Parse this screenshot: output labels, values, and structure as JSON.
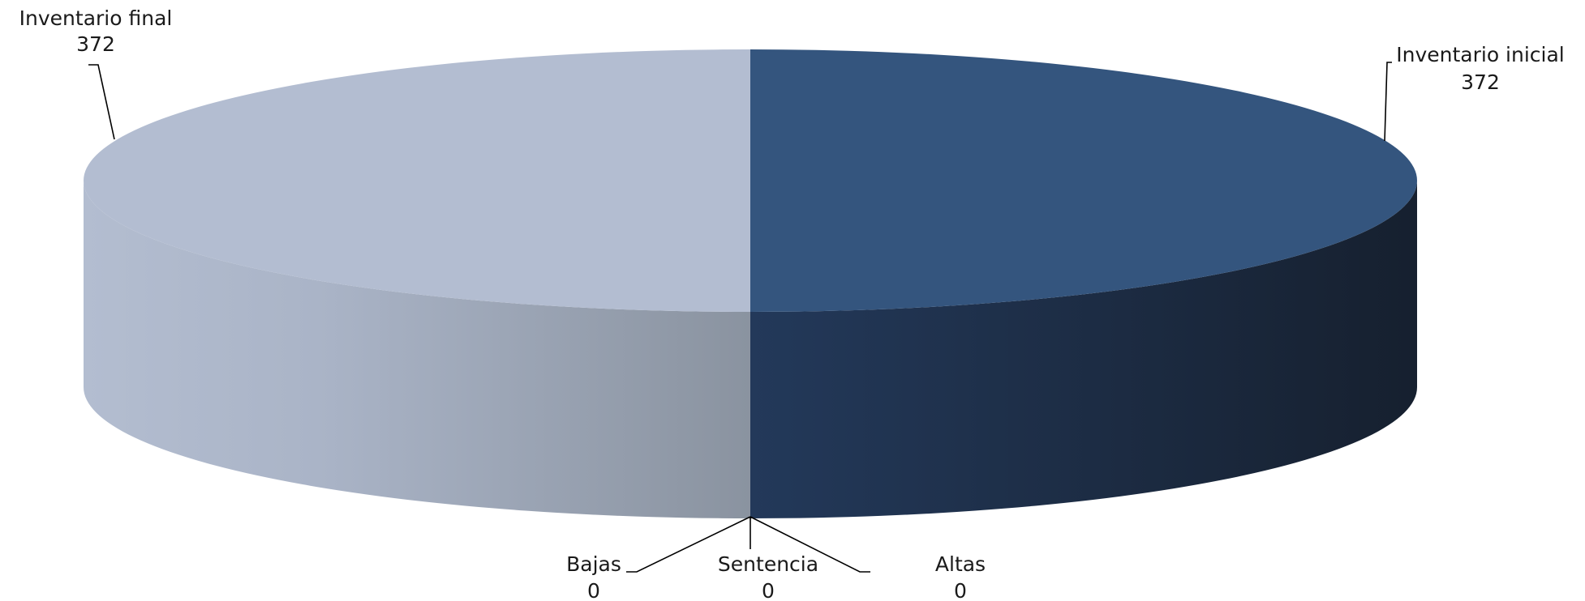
{
  "chart_data": {
    "type": "pie",
    "three_d": true,
    "slices": [
      {
        "name": "Inventario inicial",
        "value": 372,
        "color": "#34557e"
      },
      {
        "name": "Altas",
        "value": 0
      },
      {
        "name": "Sentencia",
        "value": 0
      },
      {
        "name": "Bajas",
        "value": 0
      },
      {
        "name": "Inventario final",
        "value": 372,
        "color": "#b3bdd1"
      }
    ],
    "legend": "none"
  }
}
